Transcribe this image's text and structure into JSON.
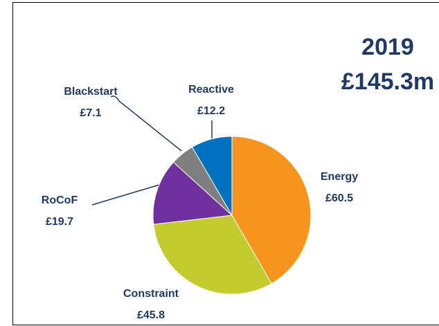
{
  "chart_data": {
    "type": "pie",
    "title": "2019",
    "subtitle": "£145.3m",
    "categories": [
      "Energy",
      "Constraint",
      "RoCoF",
      "Blackstart",
      "Reactive"
    ],
    "values": [
      60.5,
      45.8,
      19.7,
      7.1,
      12.2
    ],
    "value_labels": [
      "£60.5",
      "£45.8",
      "£19.7",
      "£7.1",
      "£12.2"
    ],
    "colors": [
      "#f7941d",
      "#c3cc2c",
      "#7030a0",
      "#7f7f7f",
      "#0070c0"
    ]
  }
}
